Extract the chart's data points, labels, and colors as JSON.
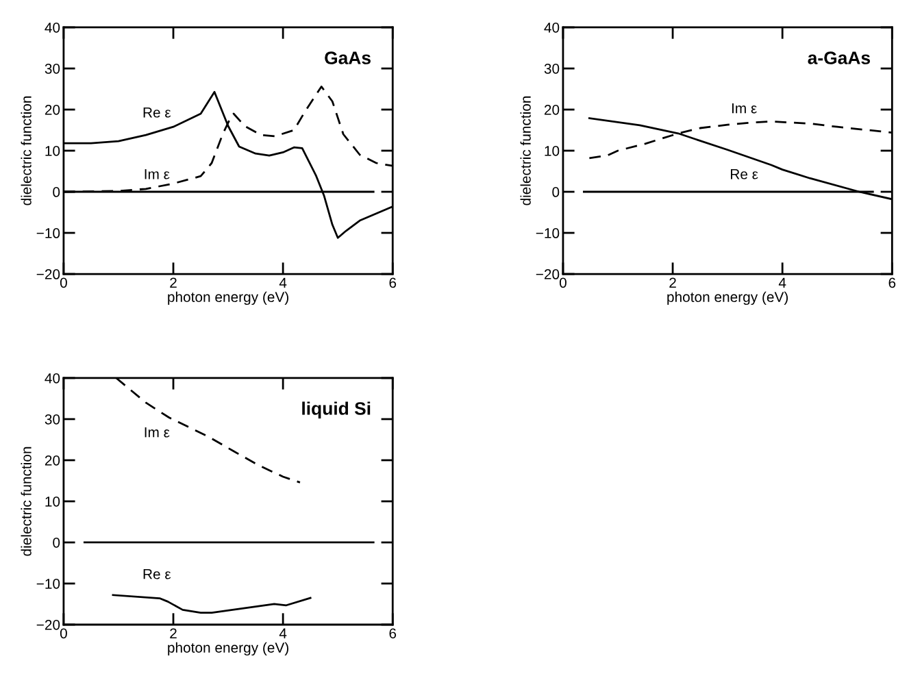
{
  "chart_data": [
    {
      "type": "line",
      "title": "GaAs",
      "xlabel": "photon energy (eV)",
      "ylabel": "dielectric function",
      "xlim": [
        0,
        6
      ],
      "ylim": [
        -20,
        40
      ],
      "xticks": [
        0,
        2,
        4,
        6
      ],
      "yticks": [
        -20,
        -10,
        0,
        10,
        20,
        30,
        40
      ],
      "grid": false,
      "legend": false,
      "marker": "none",
      "series": [
        {
          "name": "Re ε",
          "color": "#000000",
          "line_style": "solid",
          "x": [
            0,
            0.5,
            1,
            1.5,
            2,
            2.5,
            2.75,
            3.0,
            3.2,
            3.5,
            3.75,
            4.0,
            4.2,
            4.35,
            4.6,
            4.75,
            4.9,
            5.0,
            5.15,
            5.4,
            6
          ],
          "values": [
            11.8,
            11.8,
            12.3,
            13.8,
            15.8,
            19,
            24.3,
            16,
            11,
            9.3,
            8.8,
            9.6,
            10.8,
            10.6,
            4,
            -1,
            -8,
            -11.2,
            -9.5,
            -7,
            -3.6
          ]
        },
        {
          "name": "Im ε",
          "color": "#000000",
          "line_style": "dashed",
          "x": [
            0,
            1,
            1.5,
            2,
            2.5,
            2.7,
            2.9,
            3.05,
            3.1,
            3.3,
            3.6,
            3.85,
            4.2,
            4.4,
            4.7,
            4.9,
            5.1,
            5.4,
            5.7,
            6
          ],
          "values": [
            0,
            0.2,
            0.7,
            2,
            3.8,
            7,
            14,
            18.2,
            19,
            16,
            13.8,
            13.5,
            15,
            19.5,
            25.6,
            22,
            14,
            9,
            7,
            6.3
          ]
        },
        {
          "color": "#000000",
          "line_style": "solid",
          "x": [
            0,
            5.65
          ],
          "values": [
            0,
            0
          ]
        }
      ]
    },
    {
      "type": "line",
      "title": "a-GaAs",
      "xlabel": "photon energy (eV)",
      "ylabel": "dielectric function",
      "xlim": [
        0,
        6
      ],
      "ylim": [
        -20,
        40
      ],
      "xticks": [
        0,
        2,
        4,
        6
      ],
      "yticks": [
        -20,
        -10,
        0,
        10,
        20,
        30,
        40
      ],
      "grid": false,
      "legend": false,
      "marker": "none",
      "series": [
        {
          "name": "Re ε",
          "color": "#000000",
          "line_style": "solid",
          "x": [
            0.48,
            1.4,
            2.1,
            3.0,
            3.8,
            4.0,
            4.5,
            5.4,
            6
          ],
          "values": [
            17.9,
            16.2,
            14.2,
            10.2,
            6.5,
            5.4,
            3.3,
            0,
            -1.8
          ]
        },
        {
          "name": "Im ε",
          "color": "#000000",
          "line_style": "dashed",
          "x": [
            0.48,
            0.8,
            1.0,
            1.5,
            2.1,
            2.5,
            3.0,
            3.5,
            3.8,
            4.5,
            5.0,
            6
          ],
          "values": [
            8.2,
            8.8,
            10,
            11.7,
            14.2,
            15.5,
            16.3,
            16.9,
            17.1,
            16.6,
            15.8,
            14.4
          ]
        },
        {
          "color": "#000000",
          "line_style": "solid",
          "x": [
            0.38,
            5.65
          ],
          "values": [
            0,
            0
          ]
        }
      ]
    },
    {
      "type": "line",
      "title": "liquid Si",
      "xlabel": "photon energy (eV)",
      "ylabel": "dielectric function",
      "xlim": [
        0,
        6
      ],
      "ylim": [
        -20,
        40
      ],
      "xticks": [
        0,
        2,
        4,
        6
      ],
      "yticks": [
        -20,
        -10,
        0,
        10,
        20,
        30,
        40
      ],
      "grid": false,
      "legend": false,
      "marker": "none",
      "series": [
        {
          "name": "Im ε",
          "color": "#000000",
          "line_style": "dashed",
          "x": [
            0.96,
            1.5,
            1.92,
            2.63,
            3.1,
            3.55,
            4.0,
            4.31
          ],
          "values": [
            40,
            34,
            30.4,
            25.8,
            22.2,
            18.8,
            16,
            14.6
          ]
        },
        {
          "name": "Re ε",
          "color": "#000000",
          "line_style": "solid",
          "x": [
            0.9,
            1.75,
            1.9,
            2.17,
            2.5,
            2.7,
            3.84,
            4.06,
            4.5
          ],
          "values": [
            -12.8,
            -13.6,
            -14.4,
            -16.4,
            -17.1,
            -17.1,
            -15,
            -15.3,
            -13.5
          ]
        },
        {
          "color": "#000000",
          "line_style": "solid",
          "x": [
            0.38,
            5.65
          ],
          "values": [
            0,
            0
          ]
        }
      ]
    }
  ]
}
